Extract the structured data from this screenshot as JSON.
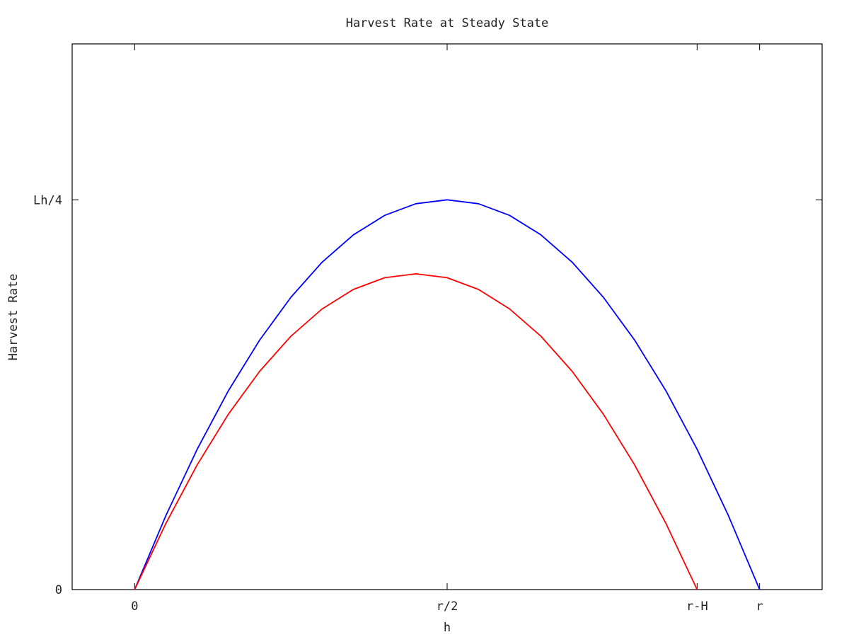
{
  "chart_data": {
    "type": "line",
    "title": "Harvest Rate at Steady State",
    "xlabel": "h",
    "ylabel": "Harvest Rate",
    "xlim": [
      -0.2,
      2.2
    ],
    "ylim": [
      0,
      1.4
    ],
    "x_ticks": [
      {
        "value": 0,
        "label": "0"
      },
      {
        "value": 1,
        "label": "r/2"
      },
      {
        "value": 1.8,
        "label": "r-H"
      },
      {
        "value": 2,
        "label": "r"
      }
    ],
    "y_ticks": [
      {
        "value": 0,
        "label": "0"
      },
      {
        "value": 1,
        "label": "Lh/4"
      }
    ],
    "grid": false,
    "legend": "none",
    "series": [
      {
        "color": "#0000ff",
        "points": [
          [
            0,
            0
          ],
          [
            0.1,
            0.19
          ],
          [
            0.2,
            0.36
          ],
          [
            0.3,
            0.51
          ],
          [
            0.4,
            0.64
          ],
          [
            0.5,
            0.75
          ],
          [
            0.6,
            0.84
          ],
          [
            0.7,
            0.91
          ],
          [
            0.8,
            0.96
          ],
          [
            0.9,
            0.99
          ],
          [
            1.0,
            1.0
          ],
          [
            1.1,
            0.99
          ],
          [
            1.2,
            0.96
          ],
          [
            1.3,
            0.91
          ],
          [
            1.4,
            0.84
          ],
          [
            1.5,
            0.75
          ],
          [
            1.6,
            0.64
          ],
          [
            1.7,
            0.51
          ],
          [
            1.8,
            0.36
          ],
          [
            1.9,
            0.19
          ],
          [
            2.0,
            0
          ]
        ]
      },
      {
        "color": "#ff0000",
        "points": [
          [
            0,
            0
          ],
          [
            0.1,
            0.17
          ],
          [
            0.2,
            0.32
          ],
          [
            0.3,
            0.45
          ],
          [
            0.4,
            0.56
          ],
          [
            0.5,
            0.65
          ],
          [
            0.6,
            0.72
          ],
          [
            0.7,
            0.77
          ],
          [
            0.8,
            0.8
          ],
          [
            0.9,
            0.81
          ],
          [
            1.0,
            0.8
          ],
          [
            1.1,
            0.77
          ],
          [
            1.2,
            0.72
          ],
          [
            1.3,
            0.65
          ],
          [
            1.4,
            0.56
          ],
          [
            1.5,
            0.45
          ],
          [
            1.6,
            0.32
          ],
          [
            1.7,
            0.17
          ],
          [
            1.8,
            0
          ]
        ]
      }
    ]
  }
}
